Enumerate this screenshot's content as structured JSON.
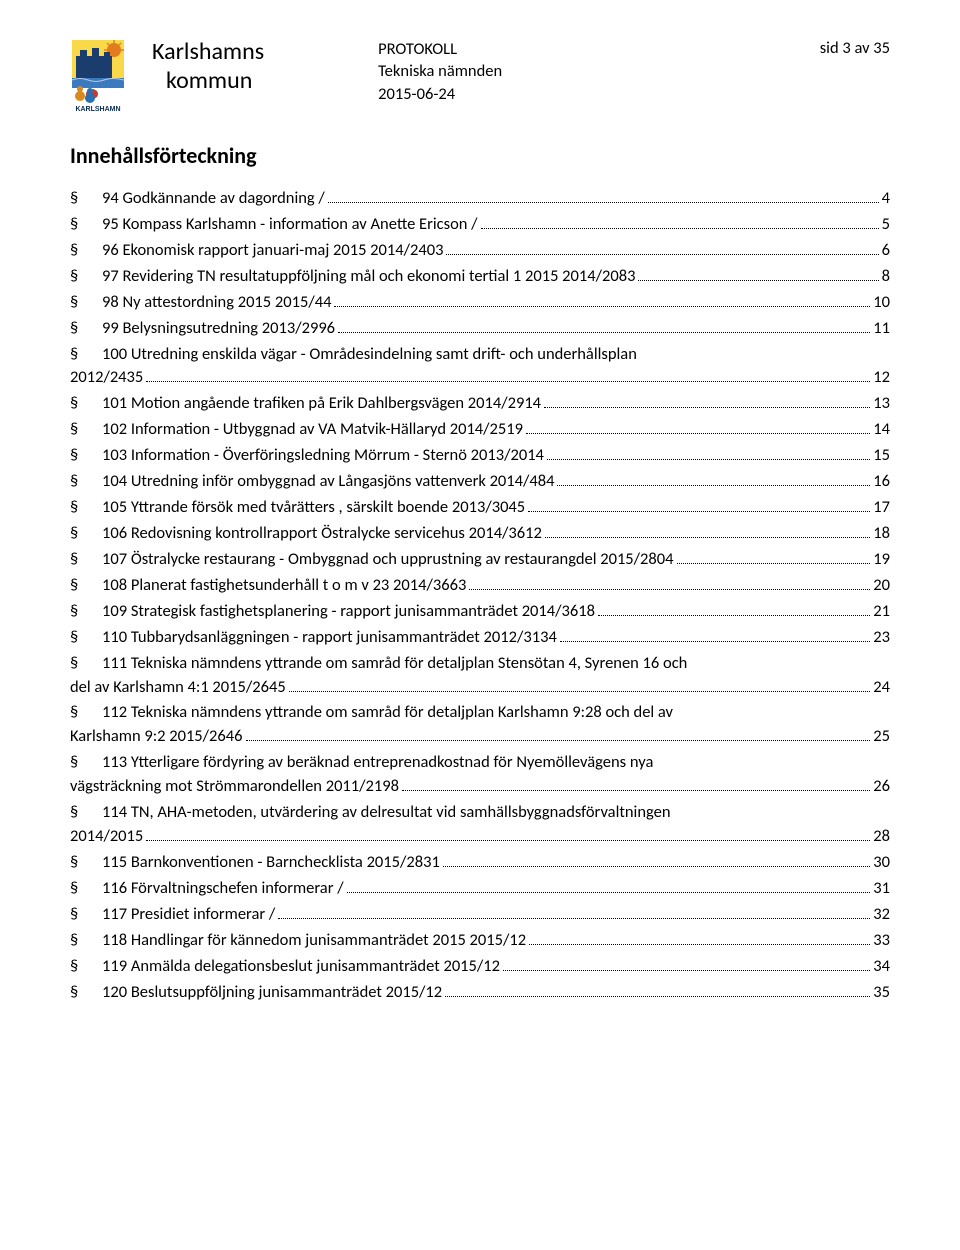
{
  "header": {
    "org_line1": "Karlshamns",
    "org_line2": "kommun",
    "center_line1": "PROTOKOLL",
    "center_line2": "Tekniska nämnden",
    "center_line3": "2015-06-24",
    "right": "sid 3 av 35"
  },
  "heading": "Innehållsförteckning",
  "toc": [
    {
      "text": "94 Godkännande av dagordning /",
      "page": "4"
    },
    {
      "text": "95 Kompass Karlshamn - information av Anette Ericson /",
      "page": "5"
    },
    {
      "text": "96 Ekonomisk rapport januari-maj 2015 2014/2403",
      "page": "6"
    },
    {
      "text": "97 Revidering TN resultatuppföljning mål och ekonomi tertial 1 2015 2014/2083",
      "page": "8"
    },
    {
      "text": "98 Ny attestordning 2015 2015/44",
      "page": "10"
    },
    {
      "text": "99 Belysningsutredning 2013/2996",
      "page": "11"
    },
    {
      "wrap": "100 Utredning enskilda vägar - Områdesindelning samt drift- och underhållsplan",
      "text": "2012/2435",
      "page": "12",
      "noindent": true
    },
    {
      "text": "101 Motion angående trafiken på Erik Dahlbergsvägen 2014/2914",
      "page": "13"
    },
    {
      "text": "102 Information - Utbyggnad av VA Matvik-Hällaryd 2014/2519",
      "page": "14"
    },
    {
      "text": "103 Information - Överföringsledning Mörrum - Sternö 2013/2014",
      "page": "15"
    },
    {
      "text": "104 Utredning inför ombyggnad av Långasjöns vattenverk 2014/484",
      "page": "16"
    },
    {
      "text": "105 Yttrande försök med tvårätters , särskilt boende 2013/3045",
      "page": "17"
    },
    {
      "text": "106 Redovisning kontrollrapport Östralycke servicehus 2014/3612",
      "page": "18"
    },
    {
      "text": "107 Östralycke restaurang - Ombyggnad och upprustning av restaurangdel 2015/2804",
      "page": "19"
    },
    {
      "text": "108 Planerat fastighetsunderhåll t o m v 23 2014/3663",
      "page": "20"
    },
    {
      "text": "109 Strategisk fastighetsplanering - rapport junisammanträdet 2014/3618",
      "page": "21"
    },
    {
      "text": "110 Tubbarydsanläggningen - rapport junisammanträdet 2012/3134",
      "page": "23"
    },
    {
      "wrap": "111 Tekniska nämndens yttrande om samråd för detaljplan Stensötan 4, Syrenen 16 och",
      "text": "del av Karlshamn 4:1 2015/2645",
      "page": "24",
      "noindent": true
    },
    {
      "wrap": "112 Tekniska nämndens yttrande om samråd för detaljplan Karlshamn 9:28 och del av",
      "text": "Karlshamn 9:2 2015/2646",
      "page": "25",
      "noindent": true
    },
    {
      "wrap": "113 Ytterligare fördyring av beräknad entreprenadkostnad för Nyemöllevägens nya",
      "text": "vägsträckning mot Strömmarondellen 2011/2198",
      "page": "26",
      "noindent": true
    },
    {
      "wrap": "114 TN, AHA-metoden, utvärdering av delresultat vid samhällsbyggnadsförvaltningen",
      "text": "2014/2015",
      "page": "28",
      "noindent": true
    },
    {
      "text": "115 Barnkonventionen - Barnchecklista 2015/2831",
      "page": "30"
    },
    {
      "text": "116 Förvaltningschefen informerar /",
      "page": "31"
    },
    {
      "text": "117 Presidiet informerar /",
      "page": "32"
    },
    {
      "text": "118 Handlingar för kännedom junisammanträdet 2015 2015/12",
      "page": "33"
    },
    {
      "text": "119 Anmälda delegationsbeslut junisammanträdet 2015/12",
      "page": "34"
    },
    {
      "text": "120 Beslutsuppföljning junisammanträdet 2015/12",
      "page": "35"
    }
  ],
  "logo_colors": {
    "sky": "#f9d94a",
    "sun": "#e07b1e",
    "castle": "#1a3d6d",
    "water": "#3b7abf",
    "red": "#c43a2e",
    "person1": "#d88a1e",
    "person2": "#2a6fb0",
    "text": "#0b2a52"
  }
}
